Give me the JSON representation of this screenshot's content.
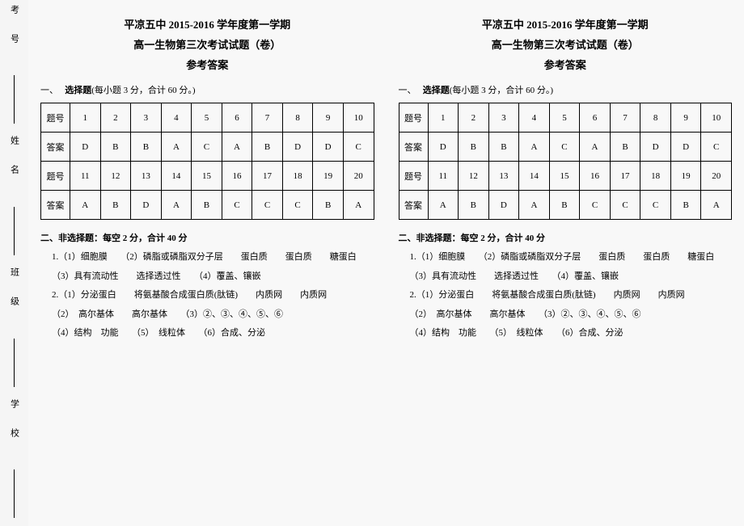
{
  "margin": {
    "labels": [
      "考号",
      "姓名",
      "班级",
      "学校"
    ]
  },
  "page": {
    "title": "平凉五中 2015-2016 学年度第一学期",
    "subtitle": "高一生物第三次考试试题（卷）",
    "answer_key": "参考答案",
    "section1_label": "一、",
    "section1_bold": "选择题",
    "section1_note": "(每小题 3 分，合计 60 分。)",
    "th_num": "题号",
    "th_ans": "答案",
    "row1_nums": [
      "1",
      "2",
      "3",
      "4",
      "5",
      "6",
      "7",
      "8",
      "9",
      "10"
    ],
    "row1_ans": [
      "D",
      "B",
      "B",
      "A",
      "C",
      "A",
      "B",
      "D",
      "D",
      "C"
    ],
    "row2_nums": [
      "11",
      "12",
      "13",
      "14",
      "15",
      "16",
      "17",
      "18",
      "19",
      "20"
    ],
    "row2_ans": [
      "A",
      "B",
      "D",
      "A",
      "B",
      "C",
      "C",
      "C",
      "B",
      "A"
    ],
    "section2": "二、非选择题：每空 2 分，合计 40 分",
    "q1_line1": "1.（1）细胞膜　　（2）磷脂或磷脂双分子层　　蛋白质　　蛋白质　　糖蛋白",
    "q1_line2": "（3）具有流动性　　选择透过性　　（4）覆盖、镶嵌",
    "q2_line1": "2.（1）分泌蛋白　　将氨基酸合成蛋白质(肽链)　　内质网　　内质网",
    "q2_line2": "（2）　高尔基体　　高尔基体　　（3）②、③、④、⑤、⑥",
    "q2_line3": "（4）结构　功能　　（5）　线粒体　　（6）合成、分泌"
  }
}
